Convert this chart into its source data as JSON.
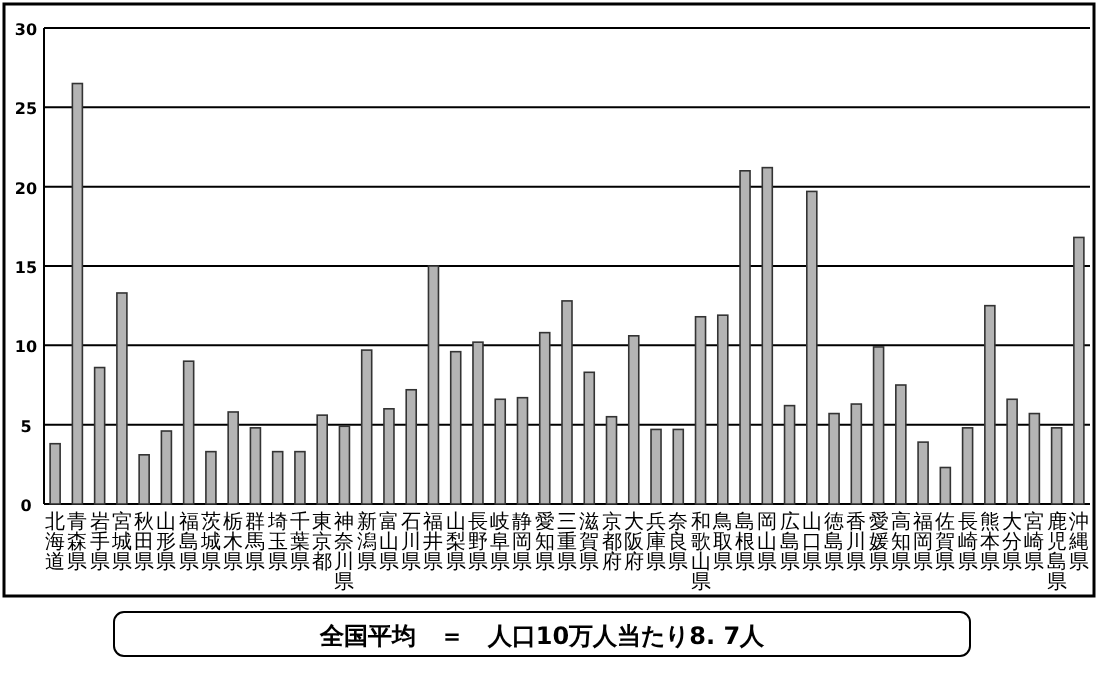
{
  "chart_data": {
    "type": "bar",
    "categories": [
      "北海道",
      "青森県",
      "岩手県",
      "宮城県",
      "秋田県",
      "山形県",
      "福島県",
      "茨城県",
      "栃木県",
      "群馬県",
      "埼玉県",
      "千葉県",
      "東京都",
      "神奈川県",
      "新潟県",
      "富山県",
      "石川県",
      "福井県",
      "山梨県",
      "長野県",
      "岐阜県",
      "静岡県",
      "愛知県",
      "三重県",
      "滋賀県",
      "京都府",
      "大阪府",
      "兵庫県",
      "奈良県",
      "和歌山県",
      "鳥取県",
      "島根県",
      "岡山県",
      "広島県",
      "山口県",
      "徳島県",
      "香川県",
      "愛媛県",
      "高知県",
      "福岡県",
      "佐賀県",
      "長崎県",
      "熊本県",
      "大分県",
      "宮崎県",
      "鹿児島県",
      "沖縄県"
    ],
    "values": [
      3.8,
      26.5,
      8.6,
      13.3,
      3.1,
      4.6,
      9.0,
      3.3,
      5.8,
      4.8,
      3.3,
      3.3,
      5.6,
      4.9,
      9.7,
      6.0,
      7.2,
      15.0,
      9.6,
      10.2,
      6.6,
      6.7,
      10.8,
      12.8,
      8.3,
      5.5,
      10.6,
      4.7,
      4.7,
      11.8,
      11.9,
      21.0,
      21.2,
      6.2,
      19.7,
      5.7,
      6.3,
      9.9,
      7.5,
      3.9,
      2.3,
      4.8,
      12.5,
      6.6,
      5.7,
      4.8,
      16.8
    ],
    "color": "#b4b4b4",
    "ylim": [
      0,
      30
    ],
    "yticks": [
      0,
      5,
      10,
      15,
      20,
      25,
      30
    ],
    "grid": "y",
    "annotations": [
      "全国平均　＝　人口10万人当たり8. 7人"
    ]
  }
}
